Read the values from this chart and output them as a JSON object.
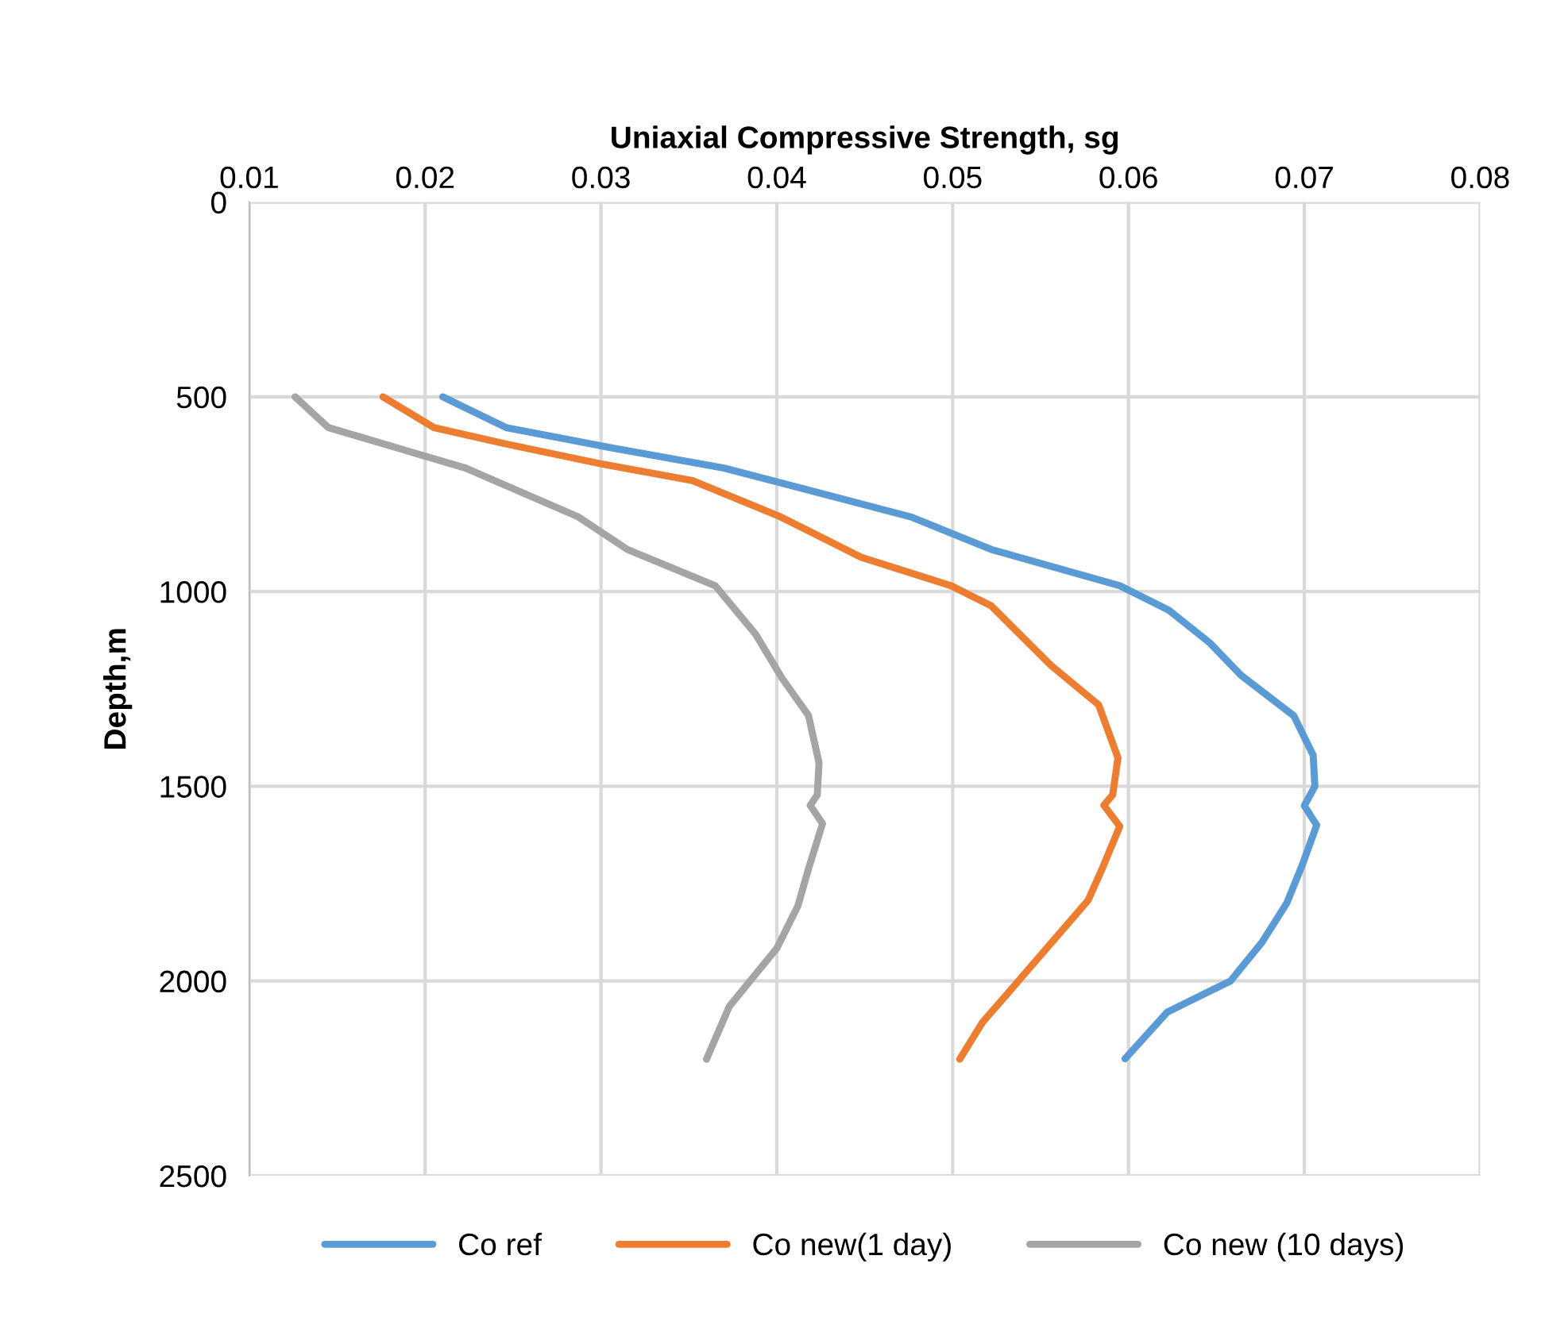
{
  "chart_data": {
    "type": "line",
    "xlabel": "Uniaxial Compressive Strength, sg",
    "ylabel": "Depth,m",
    "xlim": [
      0.01,
      0.08
    ],
    "xticks": [
      0.01,
      0.02,
      0.03,
      0.04,
      0.05,
      0.06,
      0.07,
      0.08
    ],
    "ylim": [
      2500,
      0
    ],
    "yticks": [
      0,
      500,
      1000,
      1500,
      2000,
      2500
    ],
    "grid": true,
    "legend": "bottom",
    "marker": "none",
    "line_style": "solid",
    "series": [
      {
        "name": "Co ref",
        "color": "#5b9bd5",
        "x": [
          0.021,
          0.0246,
          0.0306,
          0.037,
          0.0476,
          0.0522,
          0.0595,
          0.0623,
          0.0646,
          0.0664,
          0.0694,
          0.0705,
          0.0706,
          0.07,
          0.0707,
          0.0699,
          0.069,
          0.0676,
          0.0658,
          0.0622,
          0.0598
        ],
        "values": [
          500,
          579,
          631,
          683,
          808,
          892,
          985,
          1048,
          1131,
          1215,
          1319,
          1420,
          1500,
          1550,
          1600,
          1700,
          1800,
          1900,
          2000,
          2080,
          2200
        ]
      },
      {
        "name": "Co new(1 day)",
        "color": "#ed7d31",
        "x": [
          0.0176,
          0.0205,
          0.0246,
          0.0301,
          0.0352,
          0.0402,
          0.0448,
          0.0499,
          0.0522,
          0.0556,
          0.0583,
          0.0594,
          0.0591,
          0.0586,
          0.0595,
          0.0585,
          0.0577,
          0.0538,
          0.0517,
          0.0504
        ],
        "values": [
          500,
          579,
          621,
          673,
          715,
          808,
          912,
          985,
          1037,
          1190,
          1291,
          1427,
          1522,
          1549,
          1603,
          1712,
          1793,
          1997,
          2106,
          2201
        ]
      },
      {
        "name": "Co new (10 days)",
        "color": "#a5a5a5",
        "x": [
          0.0126,
          0.0145,
          0.0223,
          0.0287,
          0.0315,
          0.0365,
          0.0388,
          0.0403,
          0.0418,
          0.0424,
          0.0423,
          0.0419,
          0.0426,
          0.0418,
          0.0412,
          0.04,
          0.0373,
          0.036
        ],
        "values": [
          500,
          579,
          683,
          808,
          892,
          985,
          1110,
          1223,
          1318,
          1440,
          1522,
          1549,
          1596,
          1712,
          1807,
          1916,
          2065,
          2201
        ]
      }
    ]
  }
}
